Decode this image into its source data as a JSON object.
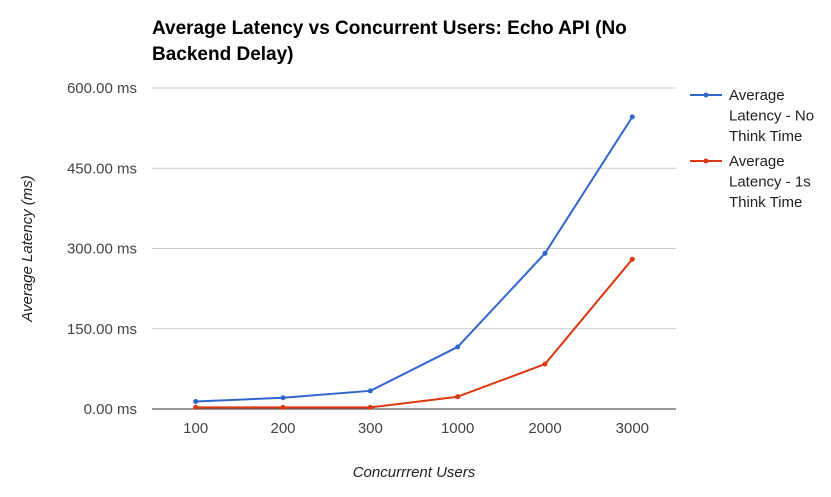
{
  "chart_data": {
    "type": "line",
    "title": "Average Latency vs Concurrent Users: Echo API (No Backend Delay)",
    "xlabel": "Concurrrent Users",
    "ylabel": "Average Latency (ms)",
    "categories": [
      "100",
      "200",
      "300",
      "1000",
      "2000",
      "3000"
    ],
    "y_ticks": [
      "0.00 ms",
      "150.00 ms",
      "300.00 ms",
      "450.00 ms",
      "600.00 ms"
    ],
    "ylim": [
      0,
      600
    ],
    "grid": true,
    "legend_position": "right",
    "series": [
      {
        "name": "Average Latency - No Think Time",
        "name_lines": [
          "Average",
          "Latency - No",
          "Think Time"
        ],
        "color": "#3366cc",
        "values": [
          14,
          21,
          34,
          116,
          291,
          546
        ]
      },
      {
        "name": "Average Latency - 1s Think Time",
        "name_lines": [
          "Average",
          "Latency - 1s",
          "Think Time"
        ],
        "color": "#dc3912",
        "values": [
          3,
          3,
          3,
          23,
          84,
          280
        ]
      }
    ]
  }
}
